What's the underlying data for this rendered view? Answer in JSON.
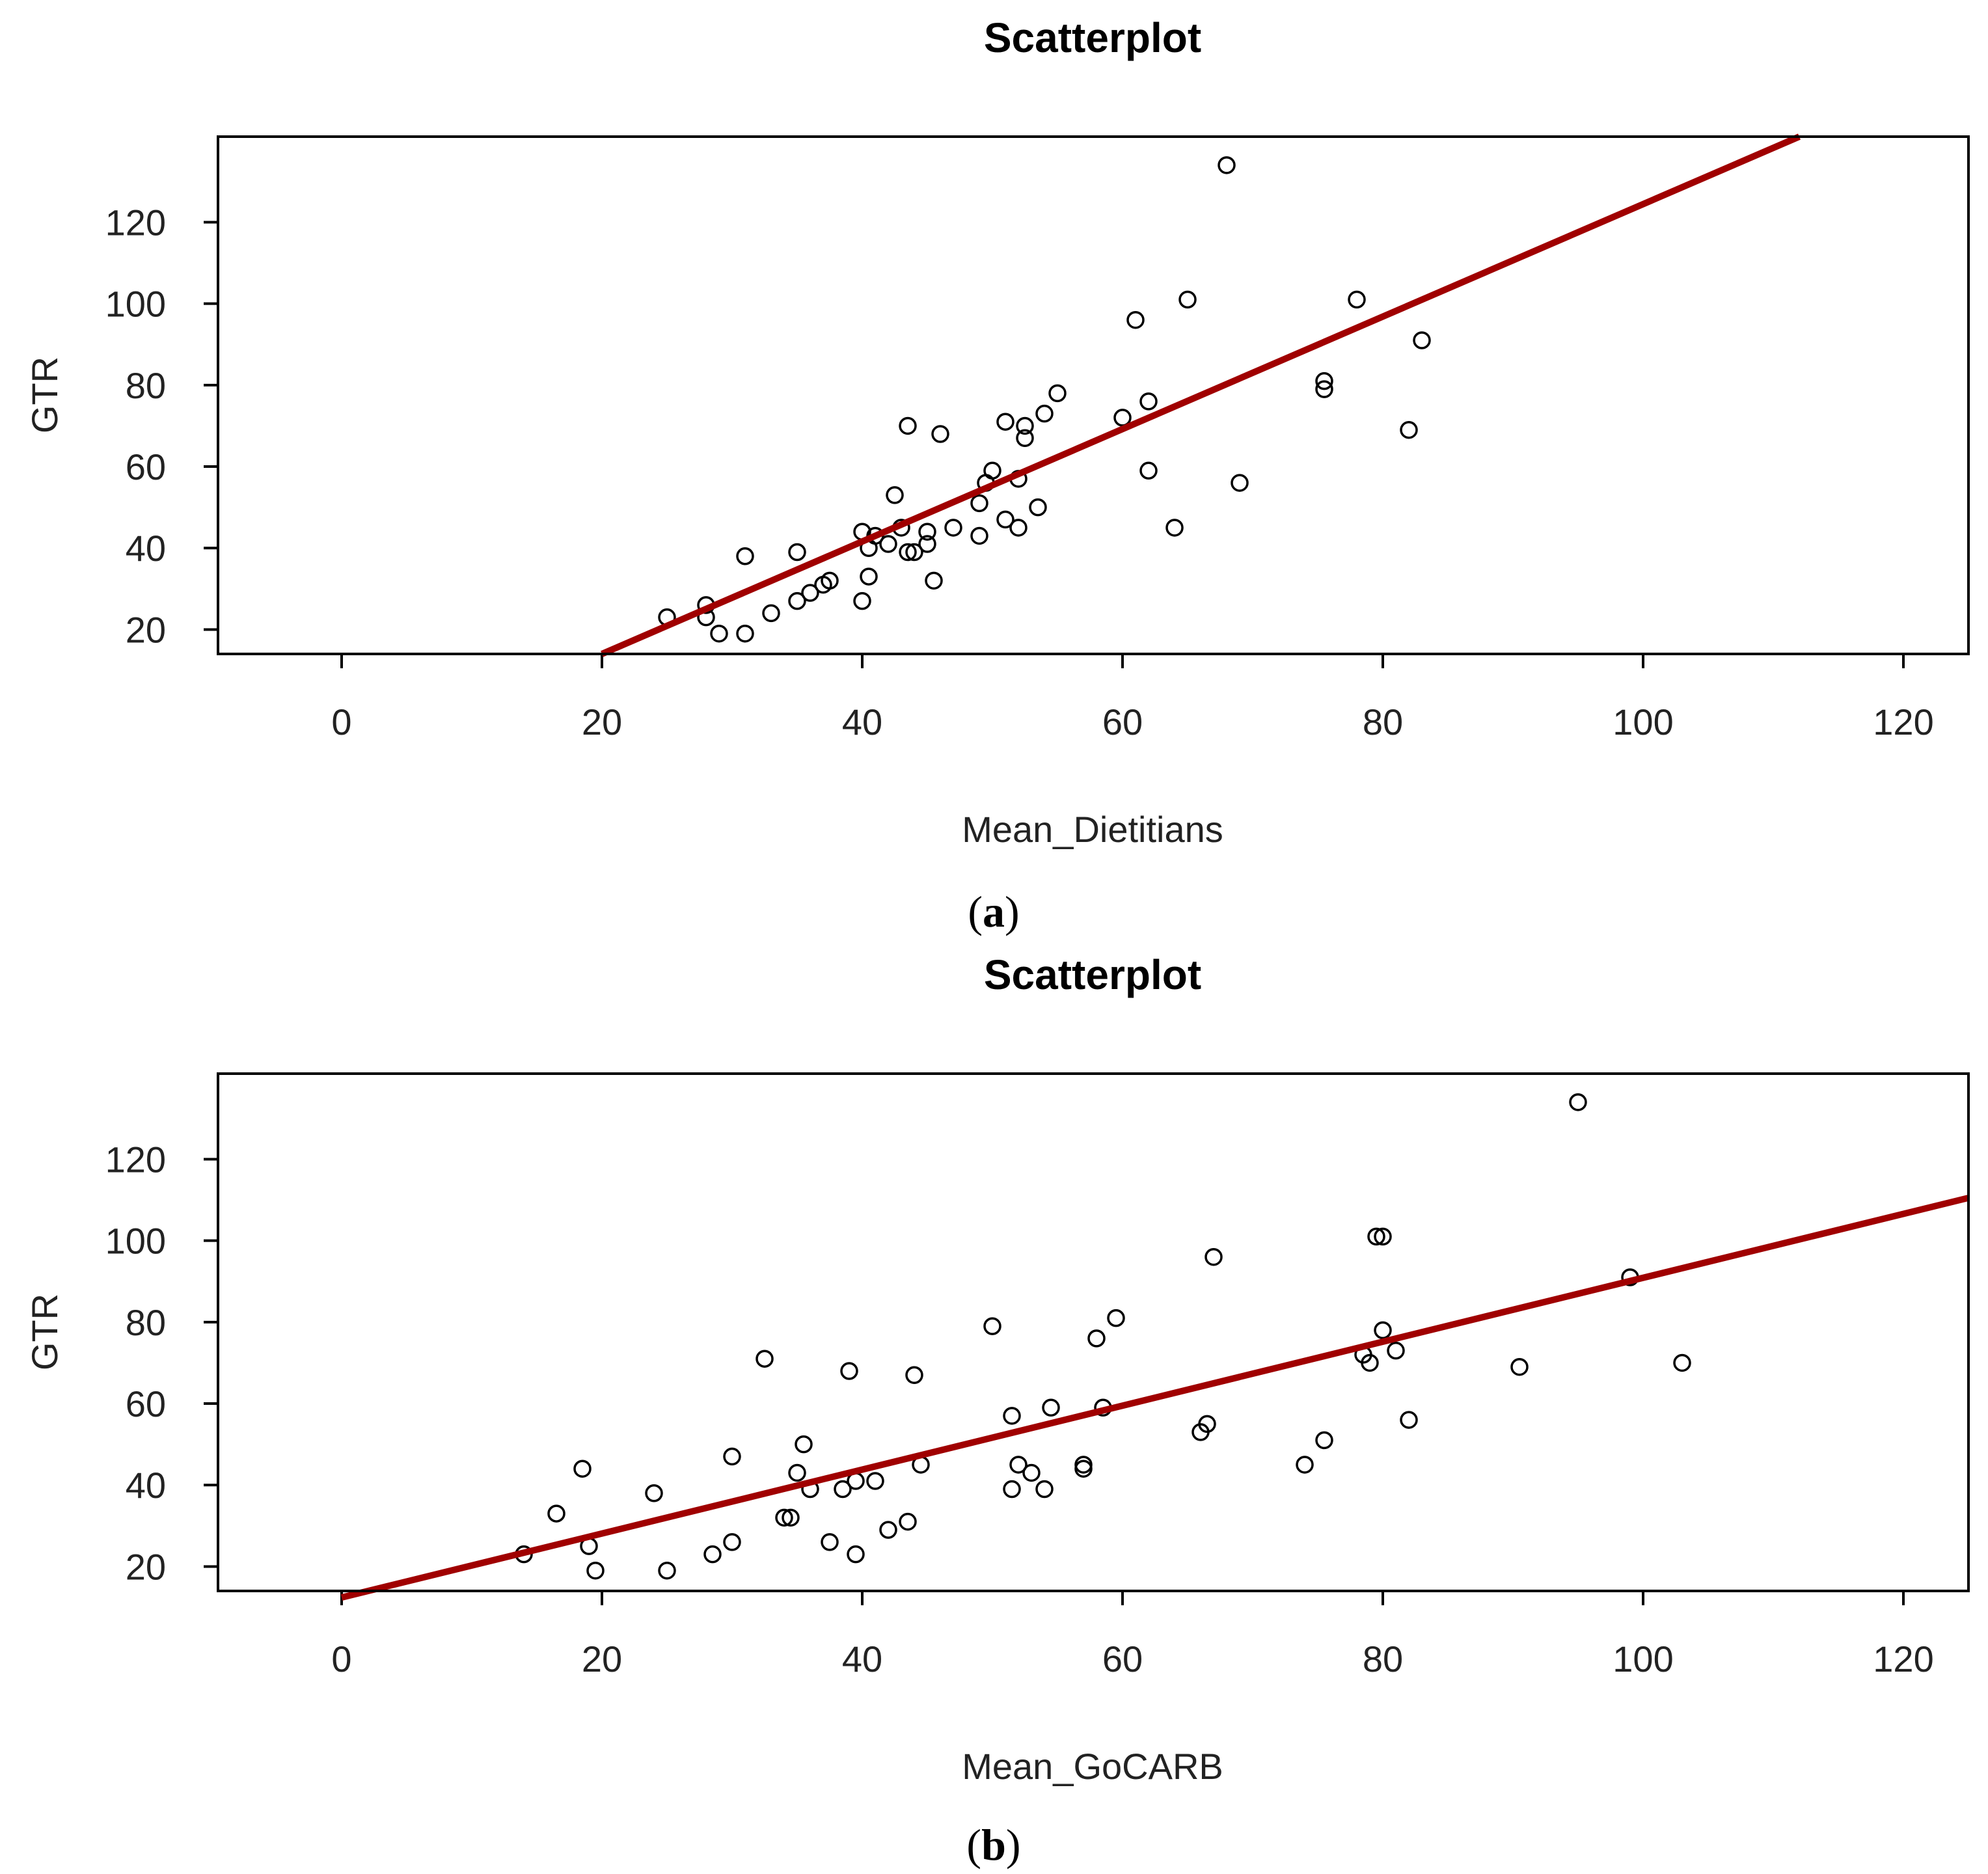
{
  "chart_data": [
    {
      "type": "scatter",
      "caption_letter": "a",
      "title": "Scatterplot",
      "xlabel": "Mean_Dietitians",
      "ylabel": "GTR",
      "xlim": [
        -9.5,
        125
      ],
      "ylim": [
        14,
        141
      ],
      "xticks": [
        0,
        20,
        40,
        60,
        80,
        100,
        120
      ],
      "yticks": [
        20,
        40,
        60,
        80,
        100,
        120
      ],
      "grid": false,
      "regression_line": {
        "x": [
          20,
          112
        ],
        "y": [
          14,
          141
        ],
        "color": "#a00000"
      },
      "points": [
        [
          25,
          23
        ],
        [
          28,
          26
        ],
        [
          28,
          23
        ],
        [
          29,
          19
        ],
        [
          31,
          19
        ],
        [
          31,
          38
        ],
        [
          33,
          24
        ],
        [
          35,
          27
        ],
        [
          35,
          39
        ],
        [
          36,
          29
        ],
        [
          37,
          31
        ],
        [
          37.5,
          32
        ],
        [
          40,
          27
        ],
        [
          40,
          44
        ],
        [
          40.5,
          33
        ],
        [
          40.5,
          40
        ],
        [
          41,
          43
        ],
        [
          42,
          41
        ],
        [
          42.5,
          53
        ],
        [
          43,
          45
        ],
        [
          43.5,
          70
        ],
        [
          43.5,
          39
        ],
        [
          44,
          39
        ],
        [
          45,
          41
        ],
        [
          45,
          44
        ],
        [
          45.5,
          32
        ],
        [
          46,
          68
        ],
        [
          47,
          45
        ],
        [
          49,
          51
        ],
        [
          49,
          43
        ],
        [
          49.5,
          56
        ],
        [
          50,
          59
        ],
        [
          51,
          47
        ],
        [
          51,
          71
        ],
        [
          52,
          45
        ],
        [
          52,
          57
        ],
        [
          52.5,
          67
        ],
        [
          52.5,
          70
        ],
        [
          53.5,
          50
        ],
        [
          54,
          73
        ],
        [
          55,
          78
        ],
        [
          60,
          72
        ],
        [
          61,
          96
        ],
        [
          62,
          59
        ],
        [
          62,
          76
        ],
        [
          64,
          45
        ],
        [
          65,
          101
        ],
        [
          68,
          134
        ],
        [
          69,
          56
        ],
        [
          75.5,
          81
        ],
        [
          75.5,
          79
        ],
        [
          78,
          101
        ],
        [
          82,
          69
        ],
        [
          83,
          91
        ]
      ]
    },
    {
      "type": "scatter",
      "caption_letter": "b",
      "title": "Scatterplot",
      "xlabel": "Mean_GoCARB",
      "ylabel": "GTR",
      "xlim": [
        -9.5,
        125
      ],
      "ylim": [
        14,
        141
      ],
      "xticks": [
        0,
        20,
        40,
        60,
        80,
        100,
        120
      ],
      "yticks": [
        20,
        40,
        60,
        80,
        100,
        120
      ],
      "grid": false,
      "regression_line": {
        "x": [
          0,
          125
        ],
        "y": [
          12.4,
          110.5
        ],
        "color": "#a00000"
      },
      "points": [
        [
          14,
          23
        ],
        [
          16.5,
          33
        ],
        [
          18.5,
          44
        ],
        [
          19,
          25
        ],
        [
          19.5,
          19
        ],
        [
          24,
          38
        ],
        [
          25,
          19
        ],
        [
          28.5,
          23
        ],
        [
          30,
          47
        ],
        [
          30,
          26
        ],
        [
          32.5,
          71
        ],
        [
          34,
          32
        ],
        [
          34.5,
          32
        ],
        [
          35,
          43
        ],
        [
          35.5,
          50
        ],
        [
          36,
          39
        ],
        [
          37.5,
          26
        ],
        [
          38.5,
          39
        ],
        [
          39,
          68
        ],
        [
          39.5,
          41
        ],
        [
          39.5,
          23
        ],
        [
          41,
          41
        ],
        [
          42,
          29
        ],
        [
          43.5,
          31
        ],
        [
          44,
          67
        ],
        [
          44.5,
          45
        ],
        [
          50,
          79
        ],
        [
          51.5,
          57
        ],
        [
          51.5,
          39
        ],
        [
          52,
          45
        ],
        [
          53,
          43
        ],
        [
          54,
          39
        ],
        [
          54.5,
          59
        ],
        [
          57,
          44
        ],
        [
          57,
          45
        ],
        [
          58,
          76
        ],
        [
          58.5,
          59
        ],
        [
          59.5,
          81
        ],
        [
          66,
          53
        ],
        [
          66.5,
          55
        ],
        [
          67,
          96
        ],
        [
          74,
          45
        ],
        [
          75.5,
          51
        ],
        [
          78.5,
          72
        ],
        [
          79,
          70
        ],
        [
          79.5,
          101
        ],
        [
          80,
          101
        ],
        [
          80,
          78
        ],
        [
          81,
          73
        ],
        [
          82,
          56
        ],
        [
          90.5,
          69
        ],
        [
          95,
          134
        ],
        [
          99,
          91
        ],
        [
          103,
          70
        ]
      ]
    }
  ]
}
